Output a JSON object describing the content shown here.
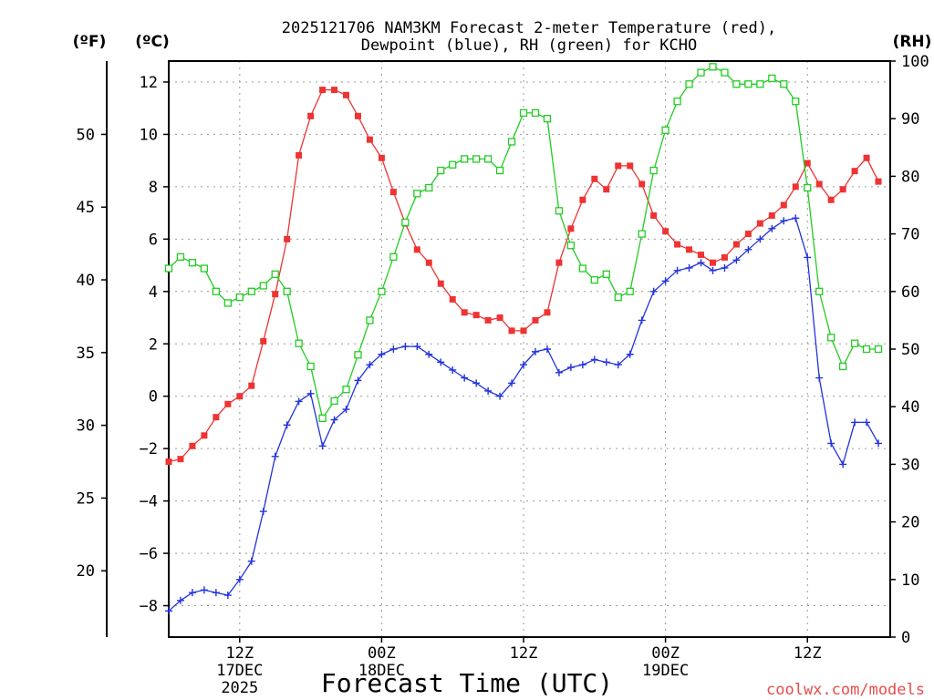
{
  "chart_data": {
    "type": "line",
    "title": [
      "2025121706 NAM3KM Forecast 2-meter Temperature (red),",
      "Dewpoint (blue), RH (green) for KCHO"
    ],
    "xlabel": "Forecast Time (UTC)",
    "unit_labels": {
      "fahrenheit": "(ºF)",
      "celsius": "(ºC)",
      "rh": "(RH)"
    },
    "watermark": "coolwx.com/models",
    "x": {
      "range": [
        6,
        67
      ],
      "unit": "hours since 2025-12-17 00Z"
    },
    "x_ticks": [
      {
        "x": 12,
        "label": "12Z",
        "sub1": "17DEC",
        "sub2": "2025"
      },
      {
        "x": 24,
        "label": "00Z",
        "sub1": "18DEC",
        "sub2": ""
      },
      {
        "x": 36,
        "label": "12Z",
        "sub1": "",
        "sub2": ""
      },
      {
        "x": 48,
        "label": "00Z",
        "sub1": "19DEC",
        "sub2": ""
      },
      {
        "x": 60,
        "label": "12Z",
        "sub1": "",
        "sub2": ""
      }
    ],
    "celsius_axis": {
      "range": [
        -9.2,
        12.8
      ],
      "ticks": [
        -8,
        -6,
        -4,
        -2,
        0,
        2,
        4,
        6,
        8,
        10,
        12
      ]
    },
    "fahrenheit_axis": {
      "ticks": [
        20,
        25,
        30,
        35,
        40,
        45,
        50
      ]
    },
    "rh_axis": {
      "range": [
        0,
        100
      ],
      "ticks": [
        0,
        10,
        20,
        30,
        40,
        50,
        60,
        70,
        80,
        90,
        100
      ]
    },
    "series": [
      {
        "name": "Temperature",
        "unit": "C",
        "color": "#ee3333",
        "marker": "filled-square",
        "values": [
          -2.5,
          -2.4,
          -1.9,
          -1.5,
          -0.8,
          -0.3,
          0.0,
          0.4,
          2.1,
          3.9,
          6.0,
          9.2,
          10.7,
          11.7,
          11.7,
          11.5,
          10.7,
          9.8,
          9.1,
          7.8,
          6.6,
          5.6,
          5.1,
          4.3,
          3.7,
          3.2,
          3.1,
          2.9,
          3.0,
          2.5,
          2.5,
          2.9,
          3.2,
          5.1,
          6.4,
          7.5,
          8.3,
          7.9,
          8.8,
          8.8,
          8.1,
          6.9,
          6.3,
          5.8,
          5.6,
          5.4,
          5.1,
          5.3,
          5.8,
          6.2,
          6.6,
          6.9,
          7.3,
          8.0,
          8.9,
          8.1,
          7.5,
          7.9,
          8.6,
          9.1,
          8.2
        ]
      },
      {
        "name": "Dewpoint",
        "unit": "C",
        "color": "#2233dd",
        "marker": "plus",
        "values": [
          -8.2,
          -7.8,
          -7.5,
          -7.4,
          -7.5,
          -7.6,
          -7.0,
          -6.3,
          -4.4,
          -2.3,
          -1.1,
          -0.2,
          0.1,
          -1.9,
          -0.9,
          -0.5,
          0.6,
          1.2,
          1.6,
          1.8,
          1.9,
          1.9,
          1.6,
          1.3,
          1.0,
          0.7,
          0.5,
          0.2,
          0.0,
          0.5,
          1.2,
          1.7,
          1.8,
          0.9,
          1.1,
          1.2,
          1.4,
          1.3,
          1.2,
          1.6,
          2.9,
          4.0,
          4.4,
          4.8,
          4.9,
          5.1,
          4.8,
          4.9,
          5.2,
          5.6,
          6.0,
          6.4,
          6.7,
          6.8,
          5.3,
          0.7,
          -1.8,
          -2.6,
          -1.0,
          -1.0,
          -1.8
        ]
      },
      {
        "name": "RH",
        "unit": "%",
        "color": "#22cc22",
        "marker": "hollow-square",
        "values": [
          64,
          66,
          65,
          64,
          60,
          58,
          59,
          60,
          61,
          63,
          60,
          51,
          47,
          38,
          41,
          43,
          49,
          55,
          60,
          66,
          72,
          77,
          78,
          81,
          82,
          83,
          83,
          83,
          81,
          86,
          91,
          91,
          90,
          74,
          68,
          64,
          62,
          63,
          59,
          60,
          70,
          81,
          88,
          93,
          96,
          98,
          99,
          98,
          96,
          96,
          96,
          97,
          96,
          93,
          78,
          60,
          52,
          47,
          51,
          50,
          50
        ]
      }
    ]
  }
}
